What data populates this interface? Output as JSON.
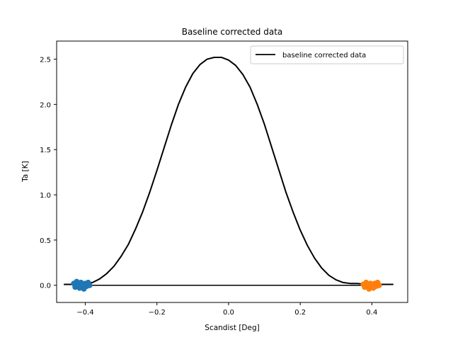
{
  "chart_data": {
    "type": "line",
    "title": "Baseline corrected data",
    "xlabel": "Scandist [Deg]",
    "ylabel": "Ta [K]",
    "xlim": [
      -0.48,
      0.5
    ],
    "ylim": [
      -0.19,
      2.7
    ],
    "xticks": [
      -0.4,
      -0.2,
      0.0,
      0.2,
      0.4
    ],
    "xtick_labels": [
      "−0.4",
      "−0.2",
      "0.0",
      "0.2",
      "0.4"
    ],
    "yticks": [
      0.0,
      0.5,
      1.0,
      1.5,
      2.0,
      2.5
    ],
    "ytick_labels": [
      "0.0",
      "0.5",
      "1.0",
      "1.5",
      "2.0",
      "2.5"
    ],
    "grid": false,
    "legend": {
      "position": "top-right",
      "entries": [
        "baseline corrected data"
      ]
    },
    "series": [
      {
        "name": "baseline corrected data",
        "color": "#000000",
        "style": "line",
        "x": [
          -0.46,
          -0.44,
          -0.42,
          -0.4,
          -0.38,
          -0.36,
          -0.34,
          -0.32,
          -0.3,
          -0.28,
          -0.26,
          -0.24,
          -0.22,
          -0.2,
          -0.18,
          -0.16,
          -0.14,
          -0.12,
          -0.1,
          -0.08,
          -0.06,
          -0.04,
          -0.02,
          0.0,
          0.02,
          0.04,
          0.06,
          0.08,
          0.1,
          0.12,
          0.14,
          0.16,
          0.18,
          0.2,
          0.22,
          0.24,
          0.26,
          0.28,
          0.3,
          0.32,
          0.34,
          0.36,
          0.38,
          0.4,
          0.42,
          0.44,
          0.46
        ],
        "y": [
          0.01,
          0.01,
          0.02,
          0.02,
          0.03,
          0.07,
          0.13,
          0.21,
          0.32,
          0.45,
          0.62,
          0.81,
          1.03,
          1.27,
          1.52,
          1.77,
          2.0,
          2.19,
          2.34,
          2.44,
          2.5,
          2.52,
          2.52,
          2.49,
          2.43,
          2.33,
          2.19,
          2.0,
          1.78,
          1.53,
          1.28,
          1.03,
          0.81,
          0.61,
          0.44,
          0.3,
          0.19,
          0.11,
          0.06,
          0.03,
          0.02,
          0.02,
          0.01,
          0.01,
          0.01,
          0.01,
          0.01
        ]
      },
      {
        "name": "",
        "color": "#000000",
        "style": "line",
        "x": [
          -0.43,
          0.42
        ],
        "y": [
          0.0,
          0.0
        ]
      },
      {
        "name": "",
        "color": "#1f77b4",
        "style": "scatter",
        "x": [
          -0.432,
          -0.428,
          -0.424,
          -0.42,
          -0.416,
          -0.412,
          -0.408,
          -0.404,
          -0.4,
          -0.396,
          -0.392,
          -0.388
        ],
        "y": [
          0.02,
          -0.02,
          0.04,
          0.0,
          -0.03,
          0.03,
          0.01,
          -0.04,
          0.02,
          -0.01,
          0.03,
          0.0
        ]
      },
      {
        "name": "",
        "color": "#ff7f0e",
        "style": "scatter",
        "x": [
          0.376,
          0.38,
          0.384,
          0.388,
          0.392,
          0.396,
          0.4,
          0.404,
          0.408,
          0.412,
          0.416,
          0.42
        ],
        "y": [
          0.01,
          -0.02,
          0.03,
          0.0,
          -0.04,
          0.02,
          0.01,
          -0.03,
          0.02,
          -0.01,
          0.03,
          0.0
        ]
      }
    ]
  }
}
